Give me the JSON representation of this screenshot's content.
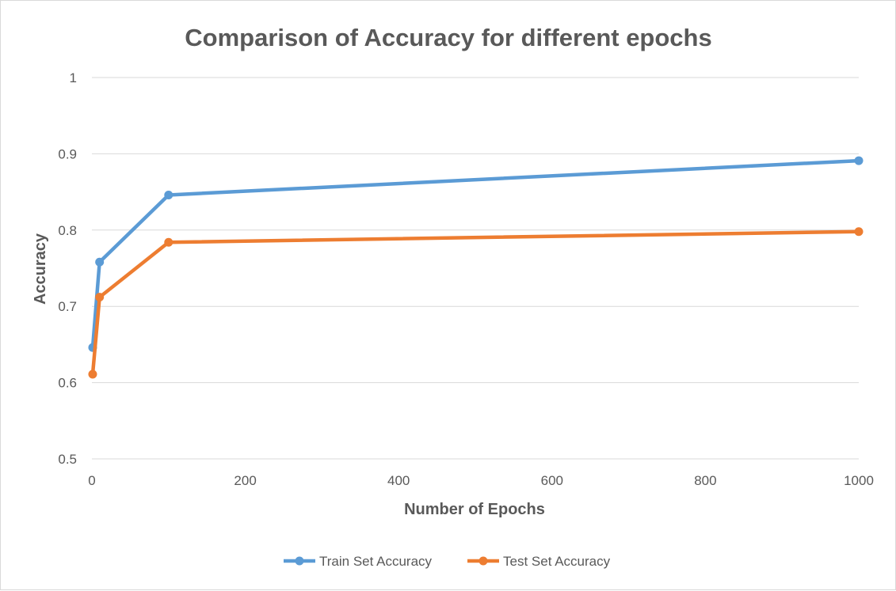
{
  "chart_data": {
    "type": "line",
    "title": "Comparison of Accuracy for different epochs",
    "xlabel": "Number of Epochs",
    "ylabel": "Accuracy",
    "xlim": [
      0,
      1000
    ],
    "ylim": [
      0.5,
      1
    ],
    "xticks": [
      0,
      200,
      400,
      600,
      800,
      1000
    ],
    "yticks": [
      0.5,
      0.6,
      0.7,
      0.8,
      0.9,
      1
    ],
    "grid": "horizontal",
    "legend_position": "bottom",
    "series": [
      {
        "name": "Train Set Accuracy",
        "color": "#5b9bd5",
        "x": [
          1,
          10,
          100,
          1000
        ],
        "y": [
          0.646,
          0.758,
          0.846,
          0.891
        ]
      },
      {
        "name": "Test Set Accuracy",
        "color": "#ed7d31",
        "x": [
          1,
          10,
          100,
          1000
        ],
        "y": [
          0.611,
          0.712,
          0.784,
          0.798
        ]
      }
    ]
  }
}
